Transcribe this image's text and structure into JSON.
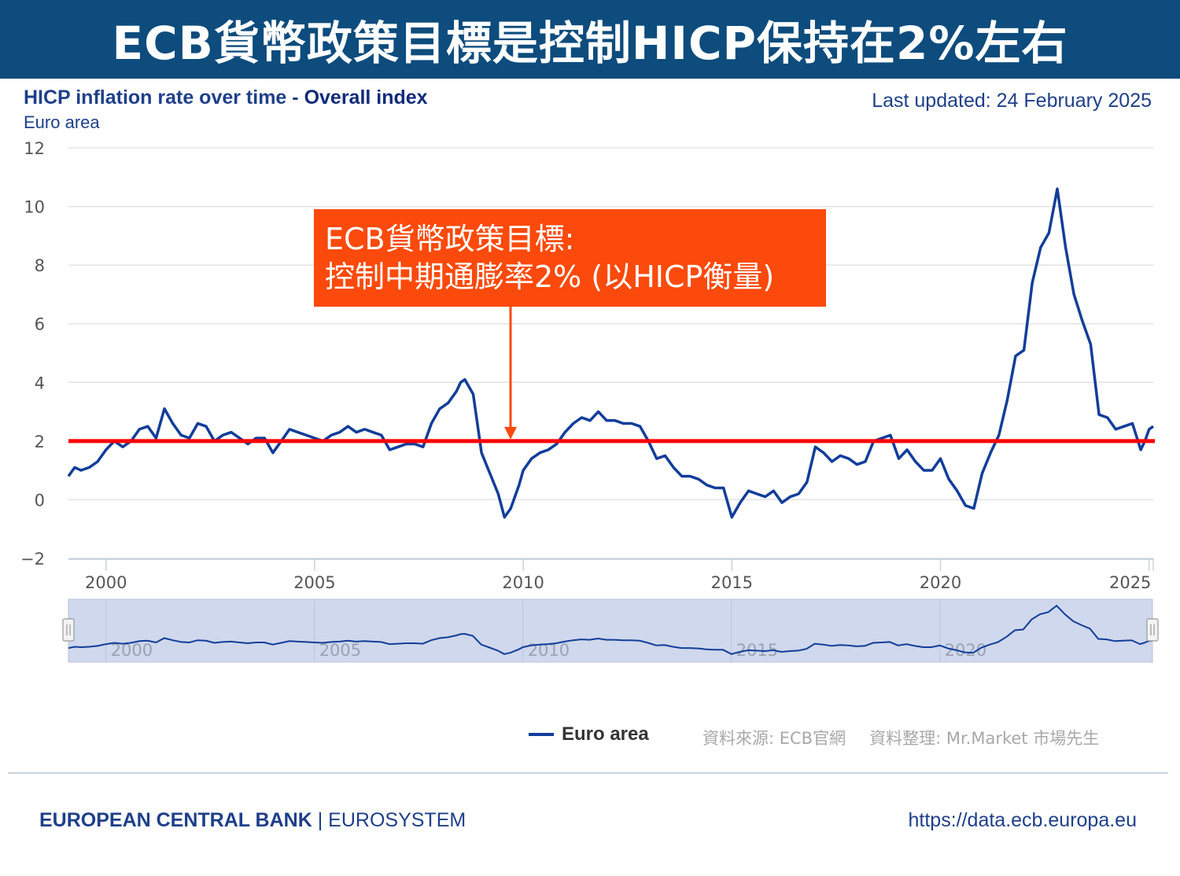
{
  "banner": {
    "title": "ECB貨幣政策目標是控制HICP保持在2%左右"
  },
  "header": {
    "title_part1": "HICP inflation rate over time - ",
    "title_part2": "Overall index",
    "subtitle": "Euro area",
    "last_updated": "Last updated: 24 February 2025"
  },
  "annotation": {
    "line1": "ECB貨幣政策目標:",
    "line2": "控制中期通膨率2% (以HICP衡量)"
  },
  "legend": {
    "series_label": "Euro area"
  },
  "source": {
    "source_text": "資料來源:  ECB官網",
    "compiled_text": "資料整理:  Mr.Market 市場先生"
  },
  "footer": {
    "org_bold": "EUROPEAN CENTRAL BANK",
    "org_rest": " | EUROSYSTEM",
    "url": "https://data.ecb.europa.eu"
  },
  "colors": {
    "banner": "#0d4c7d",
    "series": "#123d9a",
    "target_line": "#ff0000",
    "callout": "#fb4a0b",
    "navigator_fill": "#cfd8ec"
  },
  "chart_data": {
    "type": "line",
    "title": "HICP inflation rate over time - Overall index",
    "subtitle": "Euro area",
    "ylim": [
      -2,
      12
    ],
    "xlim": [
      1999.1,
      2025.1
    ],
    "yticks": [
      -2,
      0,
      2,
      4,
      6,
      8,
      10,
      12
    ],
    "xticks": [
      2000,
      2005,
      2010,
      2015,
      2020,
      2025
    ],
    "grid": true,
    "legend_position": "bottom-center",
    "reference_line": {
      "y": 2
    },
    "series": [
      {
        "name": "Euro area",
        "points": [
          [
            1999.1,
            0.8
          ],
          [
            1999.25,
            1.1
          ],
          [
            1999.4,
            1.0
          ],
          [
            1999.6,
            1.1
          ],
          [
            1999.8,
            1.3
          ],
          [
            2000.0,
            1.7
          ],
          [
            2000.2,
            2.0
          ],
          [
            2000.4,
            1.8
          ],
          [
            2000.6,
            2.0
          ],
          [
            2000.8,
            2.4
          ],
          [
            2001.0,
            2.5
          ],
          [
            2001.2,
            2.1
          ],
          [
            2001.4,
            3.1
          ],
          [
            2001.6,
            2.6
          ],
          [
            2001.8,
            2.2
          ],
          [
            2002.0,
            2.1
          ],
          [
            2002.2,
            2.6
          ],
          [
            2002.4,
            2.5
          ],
          [
            2002.6,
            2.0
          ],
          [
            2002.8,
            2.2
          ],
          [
            2003.0,
            2.3
          ],
          [
            2003.2,
            2.1
          ],
          [
            2003.4,
            1.9
          ],
          [
            2003.6,
            2.1
          ],
          [
            2003.8,
            2.1
          ],
          [
            2004.0,
            1.6
          ],
          [
            2004.2,
            2.0
          ],
          [
            2004.4,
            2.4
          ],
          [
            2004.6,
            2.3
          ],
          [
            2004.8,
            2.2
          ],
          [
            2005.0,
            2.1
          ],
          [
            2005.2,
            2.0
          ],
          [
            2005.4,
            2.2
          ],
          [
            2005.6,
            2.3
          ],
          [
            2005.8,
            2.5
          ],
          [
            2006.0,
            2.3
          ],
          [
            2006.2,
            2.4
          ],
          [
            2006.4,
            2.3
          ],
          [
            2006.6,
            2.2
          ],
          [
            2006.8,
            1.7
          ],
          [
            2007.0,
            1.8
          ],
          [
            2007.2,
            1.9
          ],
          [
            2007.4,
            1.9
          ],
          [
            2007.6,
            1.8
          ],
          [
            2007.8,
            2.6
          ],
          [
            2008.0,
            3.1
          ],
          [
            2008.2,
            3.3
          ],
          [
            2008.4,
            3.7
          ],
          [
            2008.5,
            4.0
          ],
          [
            2008.6,
            4.1
          ],
          [
            2008.8,
            3.6
          ],
          [
            2009.0,
            1.6
          ],
          [
            2009.2,
            0.9
          ],
          [
            2009.4,
            0.2
          ],
          [
            2009.55,
            -0.6
          ],
          [
            2009.7,
            -0.3
          ],
          [
            2009.9,
            0.5
          ],
          [
            2010.0,
            1.0
          ],
          [
            2010.2,
            1.4
          ],
          [
            2010.4,
            1.6
          ],
          [
            2010.6,
            1.7
          ],
          [
            2010.8,
            1.9
          ],
          [
            2011.0,
            2.3
          ],
          [
            2011.2,
            2.6
          ],
          [
            2011.4,
            2.8
          ],
          [
            2011.6,
            2.7
          ],
          [
            2011.8,
            3.0
          ],
          [
            2012.0,
            2.7
          ],
          [
            2012.2,
            2.7
          ],
          [
            2012.4,
            2.6
          ],
          [
            2012.6,
            2.6
          ],
          [
            2012.8,
            2.5
          ],
          [
            2013.0,
            2.0
          ],
          [
            2013.2,
            1.4
          ],
          [
            2013.4,
            1.5
          ],
          [
            2013.6,
            1.1
          ],
          [
            2013.8,
            0.8
          ],
          [
            2014.0,
            0.8
          ],
          [
            2014.2,
            0.7
          ],
          [
            2014.4,
            0.5
          ],
          [
            2014.6,
            0.4
          ],
          [
            2014.8,
            0.4
          ],
          [
            2015.0,
            -0.6
          ],
          [
            2015.2,
            -0.1
          ],
          [
            2015.4,
            0.3
          ],
          [
            2015.6,
            0.2
          ],
          [
            2015.8,
            0.1
          ],
          [
            2016.0,
            0.3
          ],
          [
            2016.2,
            -0.1
          ],
          [
            2016.4,
            0.1
          ],
          [
            2016.6,
            0.2
          ],
          [
            2016.8,
            0.6
          ],
          [
            2017.0,
            1.8
          ],
          [
            2017.2,
            1.6
          ],
          [
            2017.4,
            1.3
          ],
          [
            2017.6,
            1.5
          ],
          [
            2017.8,
            1.4
          ],
          [
            2018.0,
            1.2
          ],
          [
            2018.2,
            1.3
          ],
          [
            2018.4,
            2.0
          ],
          [
            2018.6,
            2.1
          ],
          [
            2018.8,
            2.2
          ],
          [
            2019.0,
            1.4
          ],
          [
            2019.2,
            1.7
          ],
          [
            2019.4,
            1.3
          ],
          [
            2019.6,
            1.0
          ],
          [
            2019.8,
            1.0
          ],
          [
            2020.0,
            1.4
          ],
          [
            2020.2,
            0.7
          ],
          [
            2020.4,
            0.3
          ],
          [
            2020.6,
            -0.2
          ],
          [
            2020.8,
            -0.3
          ],
          [
            2021.0,
            0.9
          ],
          [
            2021.2,
            1.6
          ],
          [
            2021.4,
            2.2
          ],
          [
            2021.6,
            3.4
          ],
          [
            2021.8,
            4.9
          ],
          [
            2022.0,
            5.1
          ],
          [
            2022.2,
            7.4
          ],
          [
            2022.4,
            8.6
          ],
          [
            2022.6,
            9.1
          ],
          [
            2022.8,
            10.6
          ],
          [
            2023.0,
            8.6
          ],
          [
            2023.2,
            7.0
          ],
          [
            2023.4,
            6.1
          ],
          [
            2023.6,
            5.3
          ],
          [
            2023.8,
            2.9
          ],
          [
            2024.0,
            2.8
          ],
          [
            2024.2,
            2.4
          ],
          [
            2024.4,
            2.5
          ],
          [
            2024.6,
            2.6
          ],
          [
            2024.8,
            1.7
          ],
          [
            2024.9,
            2.0
          ],
          [
            2025.0,
            2.4
          ],
          [
            2025.1,
            2.5
          ]
        ]
      }
    ]
  }
}
